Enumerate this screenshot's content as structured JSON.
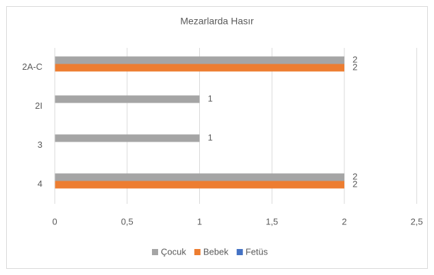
{
  "chart_data": {
    "type": "bar",
    "orientation": "horizontal",
    "title": "Mezarlarda Hasır",
    "categories": [
      "2A-C",
      "2I",
      "3",
      "4"
    ],
    "series": [
      {
        "name": "Çocuk",
        "color": "#a5a5a5",
        "values": [
          2,
          1,
          1,
          2
        ]
      },
      {
        "name": "Bebek",
        "color": "#ed7d31",
        "values": [
          2,
          null,
          null,
          2
        ]
      },
      {
        "name": "Fetüs",
        "color": "#4472c4",
        "values": [
          null,
          null,
          null,
          null
        ]
      }
    ],
    "xlim": [
      0,
      2.5
    ],
    "xticks": [
      0,
      {
        "value": 0.5,
        "label": "0,5"
      },
      1,
      {
        "value": 1.5,
        "label": "1,5"
      },
      2,
      {
        "value": 2.5,
        "label": "2,5"
      }
    ],
    "grid": true,
    "legend": "bottom"
  }
}
